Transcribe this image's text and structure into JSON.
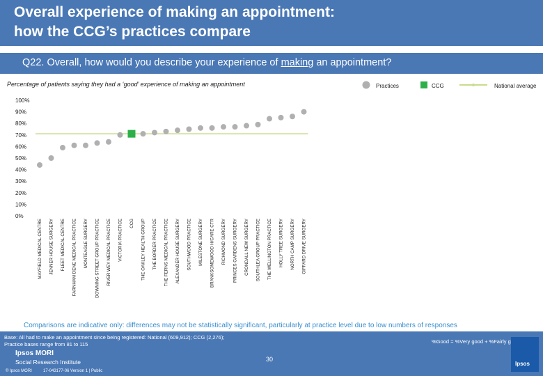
{
  "header": {
    "title_line1": "Overall experience of making an appointment:",
    "title_line2": "how the CCG’s practices compare"
  },
  "question": {
    "prefix": "Q22. Overall, how would you describe your experience of ",
    "underlined": "making",
    "suffix": " an appointment?"
  },
  "subtitle": "Percentage of patients saying they had  a ‘good’ experience of making an appointment",
  "legend": {
    "practices": "Practices",
    "ccg": "CCG",
    "national": "National average"
  },
  "colors": {
    "practice_marker": "#b0b0b0",
    "ccg_marker": "#2db04a",
    "national_line": "#c8dc8c",
    "brand_blue": "#4a78b5",
    "note_blue": "#3a8fd0"
  },
  "chart_data": {
    "type": "scatter",
    "ylim": [
      0,
      100
    ],
    "yticks": [
      "0%",
      "10%",
      "20%",
      "30%",
      "40%",
      "50%",
      "60%",
      "70%",
      "80%",
      "90%",
      "100%"
    ],
    "national_average": 71,
    "categories": [
      "MAYFIELD MEDICAL CENTRE",
      "JENNER HOUSE SURGERY",
      "FLEET MEDICAL CENTRE",
      "FARNHAM DENE MEDICAL PRACTICE",
      "MONTEAGLE SURGERY",
      "DOWNING STREET GROUP PRACTICE",
      "RIVER WEY MEDICAL PRACTICE",
      "VICTORIA PRACTICE",
      "CCG",
      "THE OAKLEY HEALTH GROUP",
      "THE BORDER PRACTICE",
      "THE FERNS MEDICAL PRACTICE",
      "ALEXANDER HOUSE SURGERY",
      "SOUTHWOOD PRACTICE",
      "MILESTONE SURGERY",
      "BRANKSOMEWOOD H/CARE CTR",
      "RICHMOND SURGERY",
      "PRINCES GARDENS SURGERY",
      "CRONDALL NEW SURGERY",
      "SOUTHLEA GROUP PRACTICE",
      "THE WELLINGTON PRACTICE",
      "HOLLY TREE SURGERY",
      "NORTH CAMP SURGERY",
      "GIFFARD DRIVE SURGERY"
    ],
    "values": [
      44,
      50,
      59,
      61,
      61,
      63,
      64,
      70,
      71,
      71,
      72,
      73,
      74,
      75,
      76,
      76,
      77,
      77,
      78,
      79,
      84,
      85,
      86,
      90
    ],
    "ccg_index": 8
  },
  "note": "Comparisons are indicative only: differences may not be statistically significant, particularly at practice level due to low numbers of responses",
  "footer": {
    "base_line1": "Base: All had to make an appointment since being registered: National (609,912); CCG (2,276);",
    "base_line2": "Practice bases range from 81 to 115",
    "calc": "%Good = %Very good + %Fairly good",
    "page": "30",
    "logo_line1": "Ipsos MORI",
    "logo_line2": "Social Research Institute",
    "copyright": "© Ipsos MORI",
    "version": "17-043177-06 Version 1 | Public",
    "ipsos": "Ipsos"
  }
}
